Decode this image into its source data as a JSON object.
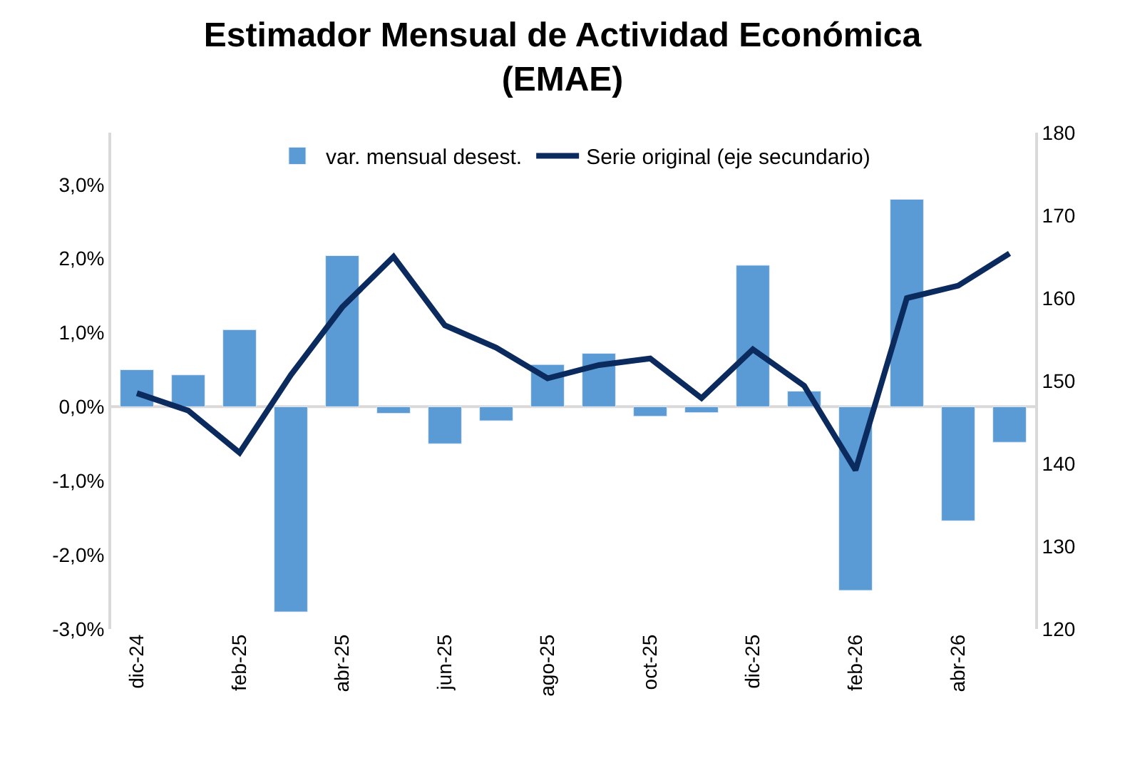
{
  "chart_data": {
    "type": "bar",
    "title": "Estimador Mensual de Actividad Económica\n(EMAE)",
    "categories": [
      "dic-24",
      null,
      "feb-25",
      null,
      "abr-25",
      null,
      "jun-25",
      null,
      "ago-25",
      null,
      "oct-25",
      null,
      "dic-25",
      null,
      "feb-26",
      null,
      "abr-26",
      null
    ],
    "series": [
      {
        "name": "var. mensual desest.",
        "color": "#5b9bd5",
        "values": [
          0.5,
          0.43,
          1.04,
          -2.77,
          2.04,
          -0.09,
          -0.5,
          -0.19,
          0.57,
          0.72,
          -0.13,
          -0.08,
          1.91,
          0.21,
          -2.48,
          2.8,
          -1.54,
          -0.48
        ]
      },
      {
        "name": "Serie original (eje secundario)",
        "type": "line",
        "axis": "y2",
        "color": "#0b2a5e",
        "values": [
          148.5,
          146.4,
          141.3,
          150.7,
          158.9,
          165.0,
          156.7,
          154.0,
          150.3,
          151.9,
          152.7,
          147.9,
          153.8,
          149.4,
          139.2,
          160.0,
          161.5,
          165.4
        ]
      }
    ],
    "ylim": [
      -3,
      3.7
    ],
    "yticks": [
      {
        "value": -3,
        "label": "-3,0%"
      },
      {
        "value": -2,
        "label": "-2,0%"
      },
      {
        "value": -1,
        "label": "-1,0%"
      },
      {
        "value": 0,
        "label": "0,0%"
      },
      {
        "value": 1,
        "label": "1,0%"
      },
      {
        "value": 2,
        "label": "2,0%"
      },
      {
        "value": 3,
        "label": "3,0%"
      }
    ],
    "y2lim": [
      120,
      180
    ],
    "y2ticks": [
      120,
      130,
      140,
      150,
      160,
      170,
      180
    ],
    "legend": "top",
    "marker": "none",
    "line_style": "solid"
  }
}
